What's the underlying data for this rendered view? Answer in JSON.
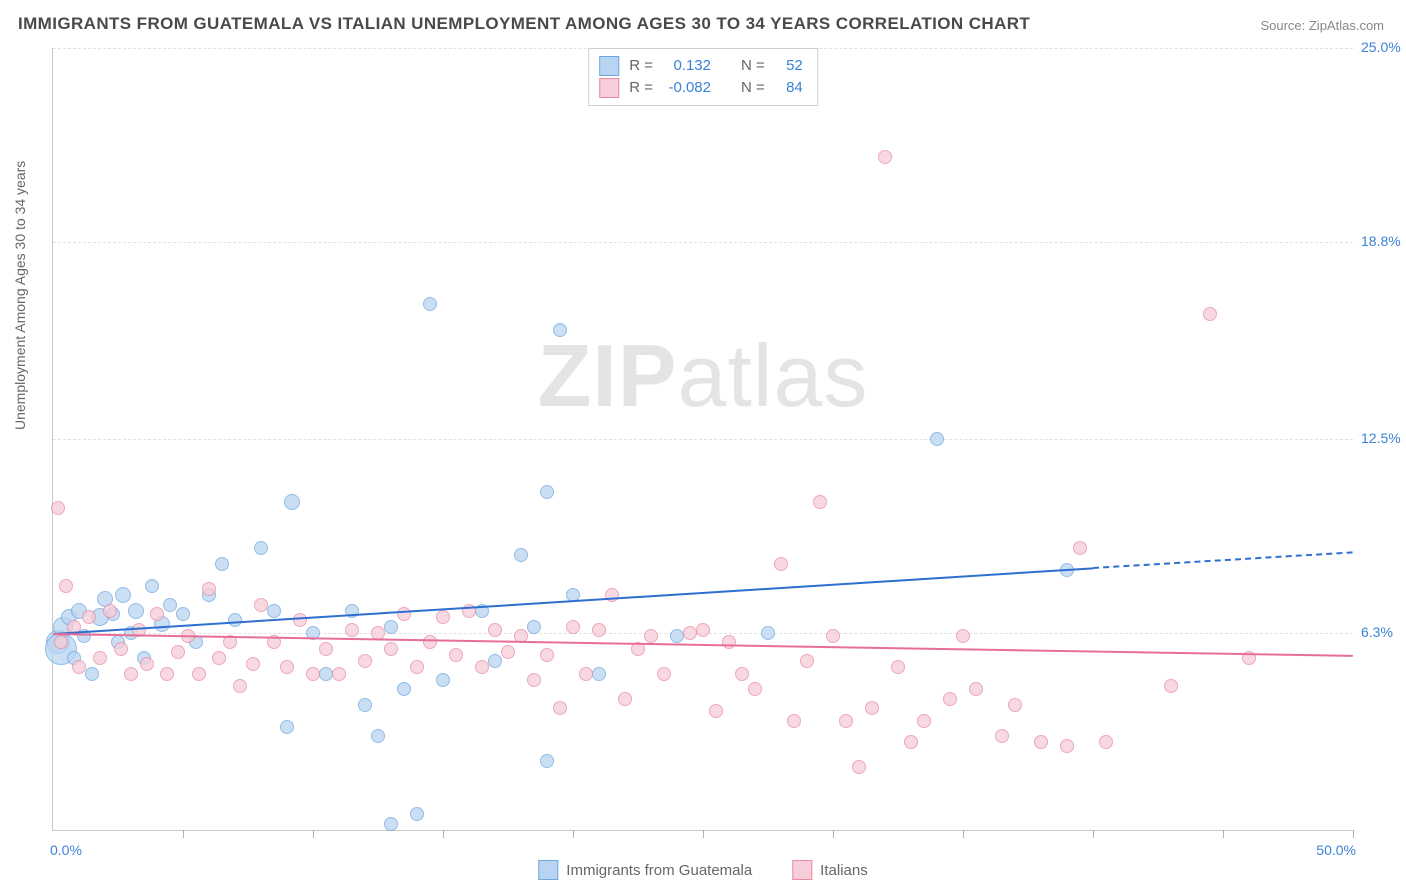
{
  "title": "IMMIGRANTS FROM GUATEMALA VS ITALIAN UNEMPLOYMENT AMONG AGES 30 TO 34 YEARS CORRELATION CHART",
  "source": "Source: ZipAtlas.com",
  "watermark_bold": "ZIP",
  "watermark_light": "atlas",
  "chart": {
    "type": "scatter-correlation",
    "background_color": "#ffffff",
    "grid_color": "#e2e2e2",
    "axis_color": "#c8c8c8",
    "tick_color": "#3b82d6",
    "text_color": "#666666",
    "y_axis_label": "Unemployment Among Ages 30 to 34 years",
    "x_range": [
      0.0,
      50.0
    ],
    "y_range": [
      0.0,
      25.0
    ],
    "y_ticks": [
      {
        "v": 6.3,
        "label": "6.3%"
      },
      {
        "v": 12.5,
        "label": "12.5%"
      },
      {
        "v": 18.8,
        "label": "18.8%"
      },
      {
        "v": 25.0,
        "label": "25.0%"
      }
    ],
    "x_tick_positions": [
      5,
      10,
      15,
      20,
      25,
      30,
      35,
      40,
      45,
      50
    ],
    "x_min_label": "0.0%",
    "x_max_label": "50.0%",
    "series": [
      {
        "key": "guatemala",
        "label": "Immigrants from Guatemala",
        "fill": "#b9d4f1",
        "stroke": "#6ea8e0",
        "line_color": "#2f6fd0",
        "r_label": "R =",
        "r_value": "0.132",
        "n_label": "N =",
        "n_value": "52",
        "trend": {
          "x1": 0,
          "y1": 6.3,
          "x2": 40,
          "y2": 8.4,
          "dash_from_x": 40,
          "x3": 50,
          "y3": 8.9
        },
        "points": [
          {
            "x": 0.2,
            "y": 6.0,
            "r": 22
          },
          {
            "x": 0.3,
            "y": 5.8,
            "r": 30
          },
          {
            "x": 0.4,
            "y": 6.5,
            "r": 18
          },
          {
            "x": 0.6,
            "y": 6.8,
            "r": 14
          },
          {
            "x": 0.8,
            "y": 5.5,
            "r": 12
          },
          {
            "x": 1.0,
            "y": 7.0,
            "r": 14
          },
          {
            "x": 1.2,
            "y": 6.2,
            "r": 12
          },
          {
            "x": 1.5,
            "y": 5.0,
            "r": 12
          },
          {
            "x": 1.8,
            "y": 6.8,
            "r": 16
          },
          {
            "x": 2.0,
            "y": 7.4,
            "r": 14
          },
          {
            "x": 2.3,
            "y": 6.9,
            "r": 12
          },
          {
            "x": 2.5,
            "y": 6.0,
            "r": 12
          },
          {
            "x": 2.7,
            "y": 7.5,
            "r": 14
          },
          {
            "x": 3.0,
            "y": 6.3,
            "r": 12
          },
          {
            "x": 3.2,
            "y": 7.0,
            "r": 14
          },
          {
            "x": 3.5,
            "y": 5.5,
            "r": 12
          },
          {
            "x": 3.8,
            "y": 7.8,
            "r": 12
          },
          {
            "x": 4.2,
            "y": 6.6,
            "r": 14
          },
          {
            "x": 4.5,
            "y": 7.2,
            "r": 12
          },
          {
            "x": 5.0,
            "y": 6.9,
            "r": 12
          },
          {
            "x": 5.5,
            "y": 6.0,
            "r": 12
          },
          {
            "x": 6.0,
            "y": 7.5,
            "r": 12
          },
          {
            "x": 6.5,
            "y": 8.5,
            "r": 12
          },
          {
            "x": 7.0,
            "y": 6.7,
            "r": 12
          },
          {
            "x": 8.0,
            "y": 9.0,
            "r": 12
          },
          {
            "x": 8.5,
            "y": 7.0,
            "r": 12
          },
          {
            "x": 9.0,
            "y": 3.3,
            "r": 12
          },
          {
            "x": 9.2,
            "y": 10.5,
            "r": 14
          },
          {
            "x": 10.0,
            "y": 6.3,
            "r": 12
          },
          {
            "x": 10.5,
            "y": 5.0,
            "r": 12
          },
          {
            "x": 11.5,
            "y": 7.0,
            "r": 12
          },
          {
            "x": 12.0,
            "y": 4.0,
            "r": 12
          },
          {
            "x": 12.5,
            "y": 3.0,
            "r": 12
          },
          {
            "x": 13.0,
            "y": 6.5,
            "r": 12
          },
          {
            "x": 13.0,
            "y": 0.2,
            "r": 12
          },
          {
            "x": 13.5,
            "y": 4.5,
            "r": 12
          },
          {
            "x": 14.0,
            "y": 0.5,
            "r": 12
          },
          {
            "x": 14.5,
            "y": 16.8,
            "r": 12
          },
          {
            "x": 15.0,
            "y": 4.8,
            "r": 12
          },
          {
            "x": 16.5,
            "y": 7.0,
            "r": 12
          },
          {
            "x": 17.0,
            "y": 5.4,
            "r": 12
          },
          {
            "x": 18.0,
            "y": 8.8,
            "r": 12
          },
          {
            "x": 18.5,
            "y": 6.5,
            "r": 12
          },
          {
            "x": 19.0,
            "y": 10.8,
            "r": 12
          },
          {
            "x": 19.0,
            "y": 2.2,
            "r": 12
          },
          {
            "x": 19.5,
            "y": 16.0,
            "r": 12
          },
          {
            "x": 20.0,
            "y": 7.5,
            "r": 12
          },
          {
            "x": 21.0,
            "y": 5.0,
            "r": 12
          },
          {
            "x": 24.0,
            "y": 6.2,
            "r": 12
          },
          {
            "x": 27.5,
            "y": 6.3,
            "r": 12
          },
          {
            "x": 34.0,
            "y": 12.5,
            "r": 12
          },
          {
            "x": 39.0,
            "y": 8.3,
            "r": 12
          }
        ]
      },
      {
        "key": "italians",
        "label": "Italians",
        "fill": "#f6cdd8",
        "stroke": "#e88ba4",
        "line_color": "#e76f97",
        "r_label": "R =",
        "r_value": "-0.082",
        "n_label": "N =",
        "n_value": "84",
        "trend": {
          "x1": 0,
          "y1": 6.3,
          "x2": 50,
          "y2": 5.6,
          "dash_from_x": 50,
          "x3": 50,
          "y3": 5.6
        },
        "points": [
          {
            "x": 0.2,
            "y": 10.3,
            "r": 12
          },
          {
            "x": 0.3,
            "y": 6.0,
            "r": 12
          },
          {
            "x": 0.5,
            "y": 7.8,
            "r": 12
          },
          {
            "x": 0.8,
            "y": 6.5,
            "r": 12
          },
          {
            "x": 1.0,
            "y": 5.2,
            "r": 12
          },
          {
            "x": 1.4,
            "y": 6.8,
            "r": 12
          },
          {
            "x": 1.8,
            "y": 5.5,
            "r": 12
          },
          {
            "x": 2.2,
            "y": 7.0,
            "r": 12
          },
          {
            "x": 2.6,
            "y": 5.8,
            "r": 12
          },
          {
            "x": 3.0,
            "y": 5.0,
            "r": 12
          },
          {
            "x": 3.3,
            "y": 6.4,
            "r": 12
          },
          {
            "x": 3.6,
            "y": 5.3,
            "r": 12
          },
          {
            "x": 4.0,
            "y": 6.9,
            "r": 12
          },
          {
            "x": 4.4,
            "y": 5.0,
            "r": 12
          },
          {
            "x": 4.8,
            "y": 5.7,
            "r": 12
          },
          {
            "x": 5.2,
            "y": 6.2,
            "r": 12
          },
          {
            "x": 5.6,
            "y": 5.0,
            "r": 12
          },
          {
            "x": 6.0,
            "y": 7.7,
            "r": 12
          },
          {
            "x": 6.4,
            "y": 5.5,
            "r": 12
          },
          {
            "x": 6.8,
            "y": 6.0,
            "r": 12
          },
          {
            "x": 7.2,
            "y": 4.6,
            "r": 12
          },
          {
            "x": 7.7,
            "y": 5.3,
            "r": 12
          },
          {
            "x": 8.0,
            "y": 7.2,
            "r": 12
          },
          {
            "x": 8.5,
            "y": 6.0,
            "r": 12
          },
          {
            "x": 9.0,
            "y": 5.2,
            "r": 12
          },
          {
            "x": 9.5,
            "y": 6.7,
            "r": 12
          },
          {
            "x": 10.0,
            "y": 5.0,
            "r": 12
          },
          {
            "x": 10.5,
            "y": 5.8,
            "r": 12
          },
          {
            "x": 11.0,
            "y": 5.0,
            "r": 12
          },
          {
            "x": 11.5,
            "y": 6.4,
            "r": 12
          },
          {
            "x": 12.0,
            "y": 5.4,
            "r": 12
          },
          {
            "x": 12.5,
            "y": 6.3,
            "r": 12
          },
          {
            "x": 13.0,
            "y": 5.8,
            "r": 12
          },
          {
            "x": 13.5,
            "y": 6.9,
            "r": 12
          },
          {
            "x": 14.0,
            "y": 5.2,
            "r": 12
          },
          {
            "x": 14.5,
            "y": 6.0,
            "r": 12
          },
          {
            "x": 15.0,
            "y": 6.8,
            "r": 12
          },
          {
            "x": 15.5,
            "y": 5.6,
            "r": 12
          },
          {
            "x": 16.0,
            "y": 7.0,
            "r": 12
          },
          {
            "x": 16.5,
            "y": 5.2,
            "r": 12
          },
          {
            "x": 17.0,
            "y": 6.4,
            "r": 12
          },
          {
            "x": 17.5,
            "y": 5.7,
            "r": 12
          },
          {
            "x": 18.0,
            "y": 6.2,
            "r": 12
          },
          {
            "x": 18.5,
            "y": 4.8,
            "r": 12
          },
          {
            "x": 19.0,
            "y": 5.6,
            "r": 12
          },
          {
            "x": 19.5,
            "y": 3.9,
            "r": 12
          },
          {
            "x": 20.0,
            "y": 6.5,
            "r": 12
          },
          {
            "x": 20.5,
            "y": 5.0,
            "r": 12
          },
          {
            "x": 21.0,
            "y": 6.4,
            "r": 12
          },
          {
            "x": 21.5,
            "y": 7.5,
            "r": 12
          },
          {
            "x": 22.0,
            "y": 4.2,
            "r": 12
          },
          {
            "x": 22.5,
            "y": 5.8,
            "r": 12
          },
          {
            "x": 23.0,
            "y": 6.2,
            "r": 12
          },
          {
            "x": 23.5,
            "y": 5.0,
            "r": 12
          },
          {
            "x": 24.5,
            "y": 6.3,
            "r": 12
          },
          {
            "x": 25.0,
            "y": 6.4,
            "r": 12
          },
          {
            "x": 25.5,
            "y": 3.8,
            "r": 12
          },
          {
            "x": 26.0,
            "y": 6.0,
            "r": 12
          },
          {
            "x": 26.5,
            "y": 5.0,
            "r": 12
          },
          {
            "x": 27.0,
            "y": 4.5,
            "r": 12
          },
          {
            "x": 28.0,
            "y": 8.5,
            "r": 12
          },
          {
            "x": 28.5,
            "y": 3.5,
            "r": 12
          },
          {
            "x": 29.0,
            "y": 5.4,
            "r": 12
          },
          {
            "x": 29.5,
            "y": 10.5,
            "r": 12
          },
          {
            "x": 30.0,
            "y": 6.2,
            "r": 12
          },
          {
            "x": 30.5,
            "y": 3.5,
            "r": 12
          },
          {
            "x": 31.0,
            "y": 2.0,
            "r": 12
          },
          {
            "x": 31.5,
            "y": 3.9,
            "r": 12
          },
          {
            "x": 32.0,
            "y": 21.5,
            "r": 12
          },
          {
            "x": 32.5,
            "y": 5.2,
            "r": 12
          },
          {
            "x": 33.0,
            "y": 2.8,
            "r": 12
          },
          {
            "x": 33.5,
            "y": 3.5,
            "r": 12
          },
          {
            "x": 34.5,
            "y": 4.2,
            "r": 12
          },
          {
            "x": 35.0,
            "y": 6.2,
            "r": 12
          },
          {
            "x": 35.5,
            "y": 4.5,
            "r": 12
          },
          {
            "x": 36.5,
            "y": 3.0,
            "r": 12
          },
          {
            "x": 37.0,
            "y": 4.0,
            "r": 12
          },
          {
            "x": 38.0,
            "y": 2.8,
            "r": 12
          },
          {
            "x": 39.0,
            "y": 2.7,
            "r": 12
          },
          {
            "x": 39.5,
            "y": 9.0,
            "r": 12
          },
          {
            "x": 40.5,
            "y": 2.8,
            "r": 12
          },
          {
            "x": 43.0,
            "y": 4.6,
            "r": 12
          },
          {
            "x": 44.5,
            "y": 16.5,
            "r": 12
          },
          {
            "x": 46.0,
            "y": 5.5,
            "r": 12
          }
        ]
      }
    ]
  }
}
